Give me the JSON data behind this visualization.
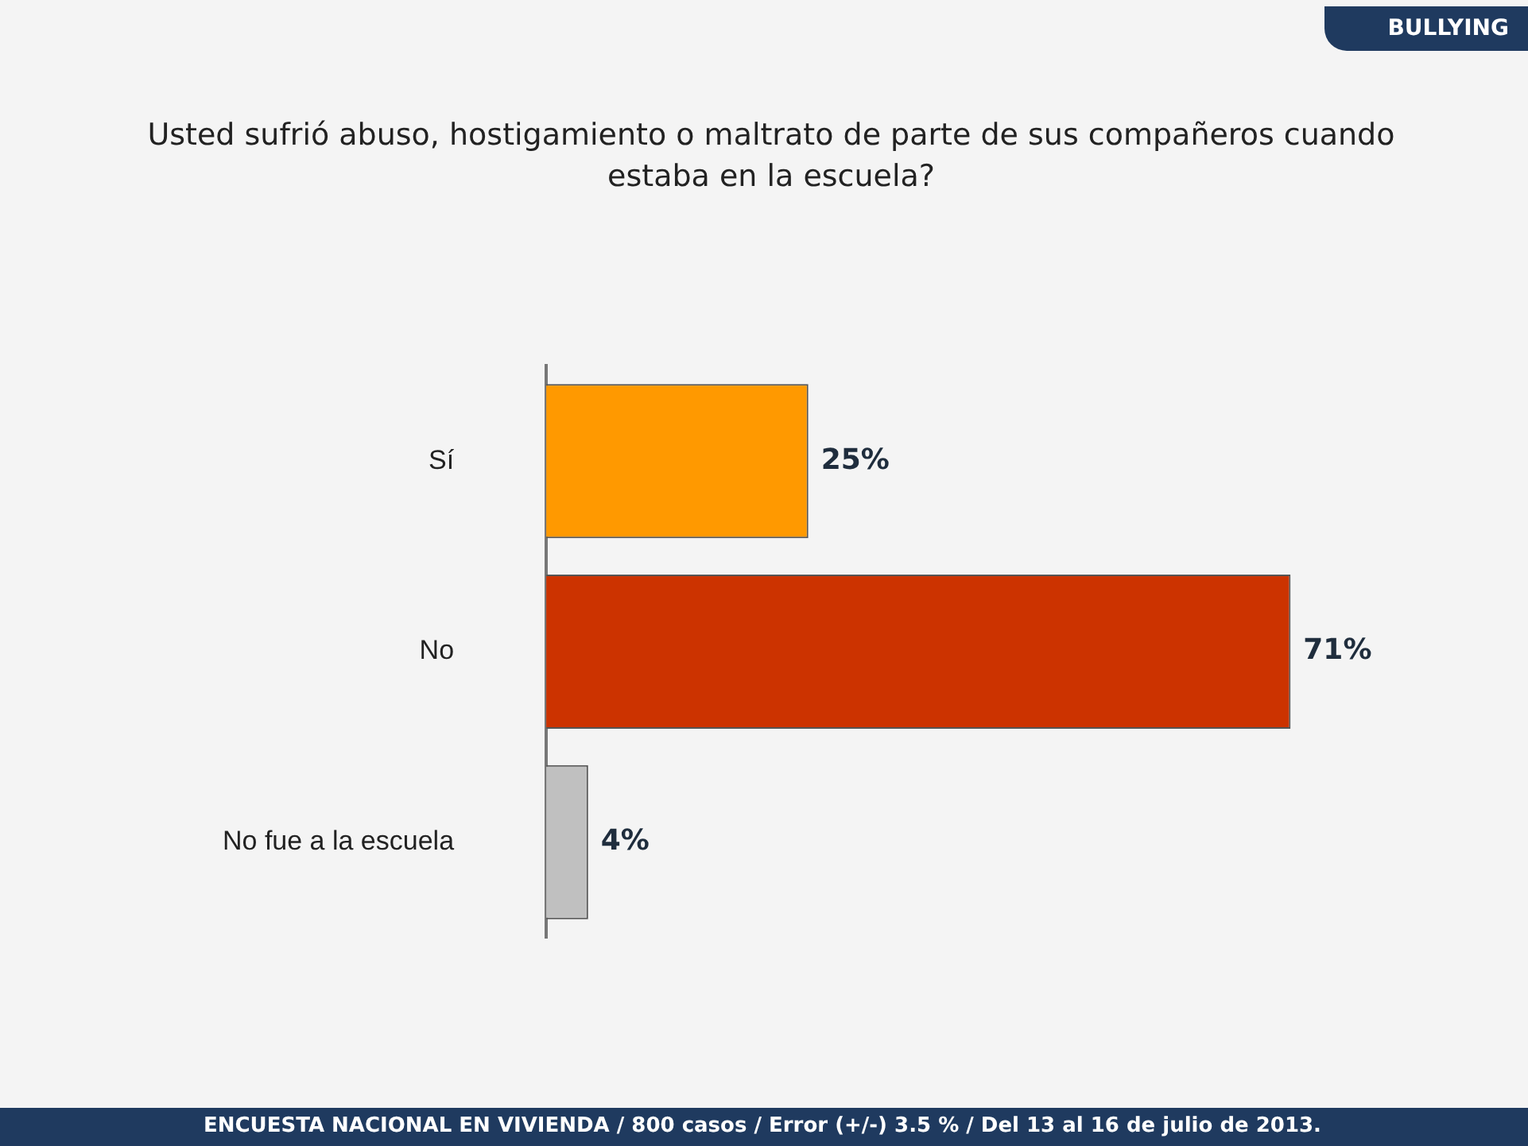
{
  "chart_data": {
    "type": "bar",
    "orientation": "horizontal",
    "title": "Usted sufrió abuso, hostigamiento o maltrato de parte de sus compañeros cuando estaba en la escuela?",
    "categories": [
      "Sí",
      "No",
      "No fue a la escuela"
    ],
    "values": [
      25,
      71,
      4
    ],
    "colors": [
      "#ff9900",
      "#cc3300",
      "#c0c0c0"
    ],
    "value_labels": [
      "25%",
      "71%",
      "4%"
    ],
    "tick_labels": "y",
    "grid": false,
    "legend": false,
    "annotations": [
      "BULLYING",
      "ENCUESTA NACIONAL EN VIVIENDA / 800 casos / Error (+/-) 3.5 % / Del 13 al 16 de julio de 2013."
    ]
  }
}
